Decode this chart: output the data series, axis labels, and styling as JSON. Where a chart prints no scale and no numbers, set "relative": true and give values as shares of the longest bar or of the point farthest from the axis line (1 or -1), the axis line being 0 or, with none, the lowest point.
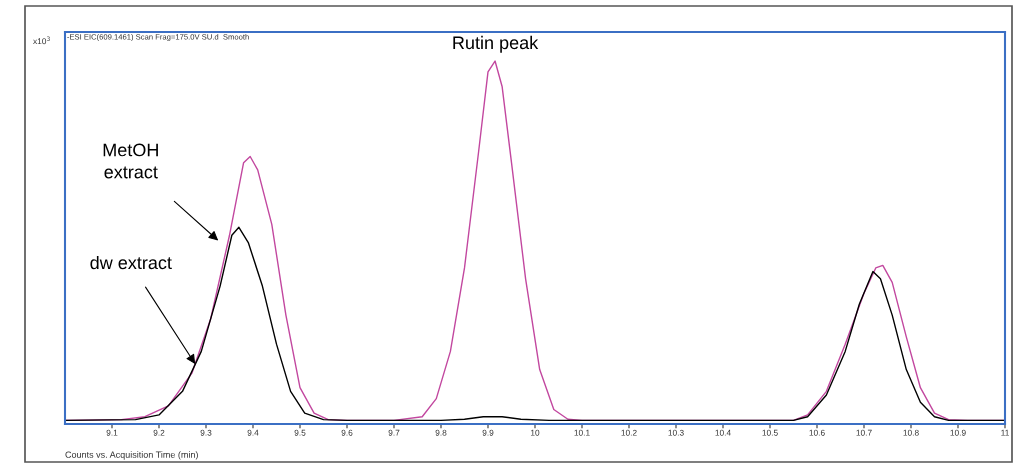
{
  "chart_data": {
    "type": "line",
    "relative": true,
    "xlabel": "Counts vs. Acquisition Time (min)",
    "xlim": [
      9.0,
      11.0
    ],
    "xticks": [
      9.1,
      9.2,
      9.3,
      9.4,
      9.5,
      9.6,
      9.7,
      9.8,
      9.9,
      10,
      10.1,
      10.2,
      10.3,
      10.4,
      10.5,
      10.6,
      10.7,
      10.8,
      10.9,
      11
    ],
    "grid": false,
    "legend": false,
    "marker": "none",
    "line_style": "solid",
    "series": [
      {
        "color": "#c2479f",
        "x": [
          9.0,
          9.12,
          9.17,
          9.22,
          9.27,
          9.31,
          9.35,
          9.38,
          9.394,
          9.41,
          9.44,
          9.47,
          9.5,
          9.53,
          9.56,
          9.6,
          9.7,
          9.76,
          9.79,
          9.82,
          9.85,
          9.88,
          9.9,
          9.915,
          9.93,
          9.95,
          9.98,
          10.01,
          10.04,
          10.07,
          10.1,
          10.55,
          10.58,
          10.62,
          10.66,
          10.7,
          10.725,
          10.74,
          10.76,
          10.79,
          10.82,
          10.85,
          10.88,
          10.92,
          11.0
        ],
        "values": [
          0.01,
          0.012,
          0.02,
          0.05,
          0.14,
          0.29,
          0.52,
          0.72,
          0.737,
          0.7,
          0.55,
          0.3,
          0.1,
          0.03,
          0.012,
          0.01,
          0.01,
          0.02,
          0.07,
          0.2,
          0.43,
          0.75,
          0.97,
          1.0,
          0.93,
          0.72,
          0.4,
          0.15,
          0.04,
          0.013,
          0.01,
          0.01,
          0.025,
          0.09,
          0.22,
          0.36,
          0.43,
          0.437,
          0.39,
          0.24,
          0.1,
          0.03,
          0.012,
          0.01,
          0.01
        ]
      },
      {
        "color": "#000000",
        "x": [
          9.0,
          9.15,
          9.2,
          9.25,
          9.29,
          9.33,
          9.355,
          9.37,
          9.39,
          9.42,
          9.45,
          9.48,
          9.51,
          9.55,
          9.6,
          9.8,
          9.85,
          9.89,
          9.93,
          9.97,
          10.03,
          10.55,
          10.58,
          10.62,
          10.66,
          10.69,
          10.719,
          10.735,
          10.76,
          10.79,
          10.82,
          10.85,
          10.88,
          11.0
        ],
        "values": [
          0.01,
          0.012,
          0.025,
          0.09,
          0.2,
          0.38,
          0.52,
          0.542,
          0.5,
          0.38,
          0.22,
          0.09,
          0.03,
          0.012,
          0.01,
          0.01,
          0.013,
          0.02,
          0.02,
          0.013,
          0.01,
          0.01,
          0.02,
          0.08,
          0.2,
          0.33,
          0.42,
          0.4,
          0.3,
          0.15,
          0.06,
          0.02,
          0.01,
          0.01
        ]
      }
    ],
    "annotations": [
      "x10$^{3}$",
      "-ESI EIC(609.1461) Scan Frag=175.0V SU.d  Smooth",
      {
        "text": "Rutin peak",
        "x": 9.915,
        "y": 1.0
      },
      "MetOH\nextract",
      {
        "text": "dw extract",
        "x": 9.277,
        "y": 0.165
      }
    ]
  }
}
